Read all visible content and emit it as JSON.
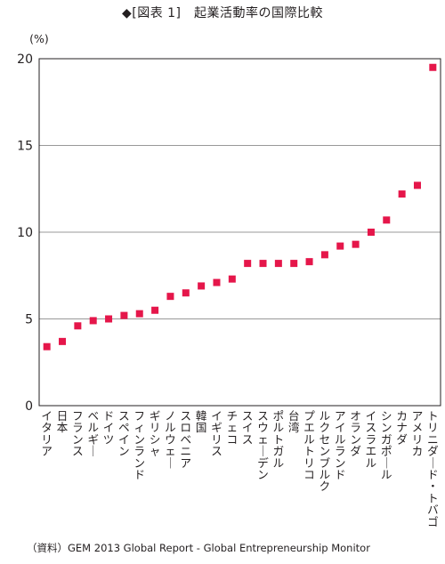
{
  "chart_data": {
    "type": "scatter",
    "title": "◆[図表 1]　起業活動率の国際比較",
    "unit": "(%)",
    "ylim": [
      0,
      20
    ],
    "yticks": [
      0,
      5,
      10,
      15,
      20
    ],
    "grid": true,
    "marker_color": "#e5164a",
    "grid_color": "#999999",
    "categories": [
      "イタリア",
      "日本",
      "フランス",
      "ベルギー",
      "ドイツ",
      "スペイン",
      "フィンランド",
      "ギリシャ",
      "ノルウェー",
      "スロベニア",
      "韓国",
      "イギリス",
      "チェコ",
      "スイス",
      "スウェーデン",
      "ポルトガル",
      "台湾",
      "プエルトリコ",
      "ルクセンブルク",
      "アイルランド",
      "オランダ",
      "イスラエル",
      "シンガポール",
      "カナダ",
      "アメリカ",
      "トリニダード・トバゴ"
    ],
    "values": [
      3.4,
      3.7,
      4.6,
      4.9,
      5.0,
      5.2,
      5.3,
      5.5,
      6.3,
      6.5,
      6.9,
      7.1,
      7.3,
      8.2,
      8.2,
      8.2,
      8.2,
      8.3,
      8.7,
      9.2,
      9.3,
      10.0,
      10.7,
      12.2,
      12.7,
      19.5
    ]
  },
  "source": "（資料）GEM 2013 Global Report - Global Entrepreneurship Monitor"
}
